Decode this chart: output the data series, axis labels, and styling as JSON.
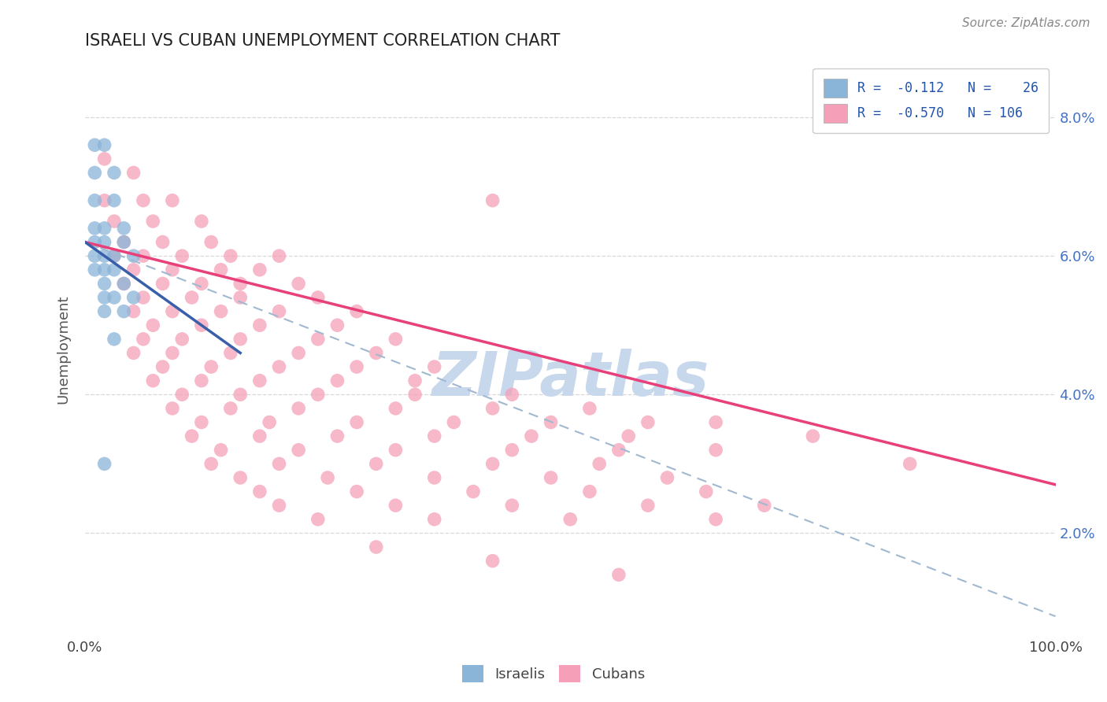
{
  "title": "ISRAELI VS CUBAN UNEMPLOYMENT CORRELATION CHART",
  "source_text": "Source: ZipAtlas.com",
  "xlabel": "",
  "ylabel": "Unemployment",
  "xlim": [
    0,
    1.0
  ],
  "ylim": [
    0.005,
    0.088
  ],
  "x_ticks": [
    0.0,
    1.0
  ],
  "x_tick_labels": [
    "0.0%",
    "100.0%"
  ],
  "y_ticks": [
    0.02,
    0.04,
    0.06,
    0.08
  ],
  "y_tick_labels": [
    "2.0%",
    "4.0%",
    "6.0%",
    "8.0%"
  ],
  "israeli_color": "#8ab4d8",
  "cuban_color": "#f5a0b8",
  "israeli_line_color": "#3a5faa",
  "cuban_line_color": "#e8407a",
  "dashed_line_color": "#a0b8d0",
  "watermark_text": "ZIPatlas",
  "watermark_color": "#c8d8ec",
  "background_color": "#ffffff",
  "grid_color": "#d8d8d8",
  "isr_line_x0": 0.0,
  "isr_line_x1": 0.16,
  "isr_line_y0": 0.062,
  "isr_line_y1": 0.046,
  "cub_line_x0": 0.0,
  "cub_line_x1": 1.0,
  "cub_line_y0": 0.062,
  "cub_line_y1": 0.027,
  "dash_line_x0": 0.0,
  "dash_line_x1": 1.0,
  "dash_line_y0": 0.062,
  "dash_line_y1": 0.008,
  "israeli_points": [
    [
      0.01,
      0.076
    ],
    [
      0.02,
      0.076
    ],
    [
      0.01,
      0.072
    ],
    [
      0.03,
      0.072
    ],
    [
      0.01,
      0.068
    ],
    [
      0.03,
      0.068
    ],
    [
      0.01,
      0.064
    ],
    [
      0.02,
      0.064
    ],
    [
      0.04,
      0.064
    ],
    [
      0.01,
      0.062
    ],
    [
      0.02,
      0.062
    ],
    [
      0.04,
      0.062
    ],
    [
      0.01,
      0.06
    ],
    [
      0.02,
      0.06
    ],
    [
      0.03,
      0.06
    ],
    [
      0.05,
      0.06
    ],
    [
      0.01,
      0.058
    ],
    [
      0.02,
      0.058
    ],
    [
      0.03,
      0.058
    ],
    [
      0.02,
      0.056
    ],
    [
      0.04,
      0.056
    ],
    [
      0.02,
      0.054
    ],
    [
      0.03,
      0.054
    ],
    [
      0.05,
      0.054
    ],
    [
      0.02,
      0.052
    ],
    [
      0.04,
      0.052
    ],
    [
      0.03,
      0.048
    ],
    [
      0.02,
      0.03
    ]
  ],
  "cuban_points": [
    [
      0.02,
      0.074
    ],
    [
      0.05,
      0.072
    ],
    [
      0.02,
      0.068
    ],
    [
      0.06,
      0.068
    ],
    [
      0.09,
      0.068
    ],
    [
      0.03,
      0.065
    ],
    [
      0.07,
      0.065
    ],
    [
      0.12,
      0.065
    ],
    [
      0.04,
      0.062
    ],
    [
      0.08,
      0.062
    ],
    [
      0.13,
      0.062
    ],
    [
      0.03,
      0.06
    ],
    [
      0.06,
      0.06
    ],
    [
      0.1,
      0.06
    ],
    [
      0.15,
      0.06
    ],
    [
      0.2,
      0.06
    ],
    [
      0.05,
      0.058
    ],
    [
      0.09,
      0.058
    ],
    [
      0.14,
      0.058
    ],
    [
      0.18,
      0.058
    ],
    [
      0.04,
      0.056
    ],
    [
      0.08,
      0.056
    ],
    [
      0.12,
      0.056
    ],
    [
      0.16,
      0.056
    ],
    [
      0.22,
      0.056
    ],
    [
      0.06,
      0.054
    ],
    [
      0.11,
      0.054
    ],
    [
      0.16,
      0.054
    ],
    [
      0.24,
      0.054
    ],
    [
      0.05,
      0.052
    ],
    [
      0.09,
      0.052
    ],
    [
      0.14,
      0.052
    ],
    [
      0.2,
      0.052
    ],
    [
      0.28,
      0.052
    ],
    [
      0.07,
      0.05
    ],
    [
      0.12,
      0.05
    ],
    [
      0.18,
      0.05
    ],
    [
      0.26,
      0.05
    ],
    [
      0.06,
      0.048
    ],
    [
      0.1,
      0.048
    ],
    [
      0.16,
      0.048
    ],
    [
      0.24,
      0.048
    ],
    [
      0.32,
      0.048
    ],
    [
      0.05,
      0.046
    ],
    [
      0.09,
      0.046
    ],
    [
      0.15,
      0.046
    ],
    [
      0.22,
      0.046
    ],
    [
      0.3,
      0.046
    ],
    [
      0.08,
      0.044
    ],
    [
      0.13,
      0.044
    ],
    [
      0.2,
      0.044
    ],
    [
      0.28,
      0.044
    ],
    [
      0.36,
      0.044
    ],
    [
      0.07,
      0.042
    ],
    [
      0.12,
      0.042
    ],
    [
      0.18,
      0.042
    ],
    [
      0.26,
      0.042
    ],
    [
      0.34,
      0.042
    ],
    [
      0.1,
      0.04
    ],
    [
      0.16,
      0.04
    ],
    [
      0.24,
      0.04
    ],
    [
      0.34,
      0.04
    ],
    [
      0.44,
      0.04
    ],
    [
      0.09,
      0.038
    ],
    [
      0.15,
      0.038
    ],
    [
      0.22,
      0.038
    ],
    [
      0.32,
      0.038
    ],
    [
      0.42,
      0.038
    ],
    [
      0.52,
      0.038
    ],
    [
      0.12,
      0.036
    ],
    [
      0.19,
      0.036
    ],
    [
      0.28,
      0.036
    ],
    [
      0.38,
      0.036
    ],
    [
      0.48,
      0.036
    ],
    [
      0.58,
      0.036
    ],
    [
      0.11,
      0.034
    ],
    [
      0.18,
      0.034
    ],
    [
      0.26,
      0.034
    ],
    [
      0.36,
      0.034
    ],
    [
      0.46,
      0.034
    ],
    [
      0.56,
      0.034
    ],
    [
      0.14,
      0.032
    ],
    [
      0.22,
      0.032
    ],
    [
      0.32,
      0.032
    ],
    [
      0.44,
      0.032
    ],
    [
      0.55,
      0.032
    ],
    [
      0.65,
      0.032
    ],
    [
      0.13,
      0.03
    ],
    [
      0.2,
      0.03
    ],
    [
      0.3,
      0.03
    ],
    [
      0.42,
      0.03
    ],
    [
      0.53,
      0.03
    ],
    [
      0.16,
      0.028
    ],
    [
      0.25,
      0.028
    ],
    [
      0.36,
      0.028
    ],
    [
      0.48,
      0.028
    ],
    [
      0.6,
      0.028
    ],
    [
      0.18,
      0.026
    ],
    [
      0.28,
      0.026
    ],
    [
      0.4,
      0.026
    ],
    [
      0.52,
      0.026
    ],
    [
      0.64,
      0.026
    ],
    [
      0.2,
      0.024
    ],
    [
      0.32,
      0.024
    ],
    [
      0.44,
      0.024
    ],
    [
      0.58,
      0.024
    ],
    [
      0.7,
      0.024
    ],
    [
      0.24,
      0.022
    ],
    [
      0.36,
      0.022
    ],
    [
      0.5,
      0.022
    ],
    [
      0.65,
      0.022
    ],
    [
      0.65,
      0.036
    ],
    [
      0.75,
      0.034
    ],
    [
      0.85,
      0.03
    ],
    [
      0.3,
      0.018
    ],
    [
      0.42,
      0.016
    ],
    [
      0.55,
      0.014
    ],
    [
      0.42,
      0.068
    ]
  ]
}
